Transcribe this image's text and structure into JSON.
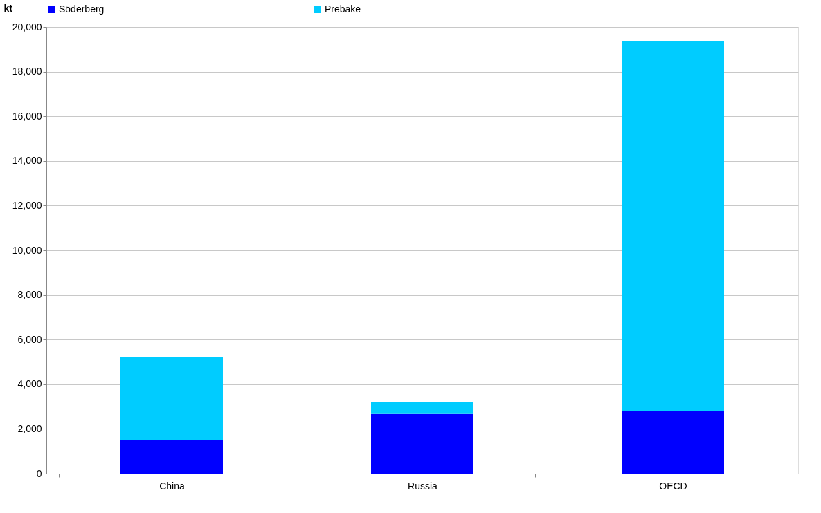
{
  "chart_data": {
    "type": "bar",
    "stacked": true,
    "ylabel": "kt",
    "categories": [
      "China",
      "Russia",
      "OECD"
    ],
    "series": [
      {
        "name": "Söderberg",
        "color": "#0000ff",
        "values": [
          1500,
          2670,
          2820
        ]
      },
      {
        "name": "Prebake",
        "color": "#00ccff",
        "values": [
          3700,
          530,
          16560
        ]
      }
    ],
    "ylim": [
      0,
      20000
    ],
    "yticks": [
      {
        "value": 0,
        "label": "0"
      },
      {
        "value": 2000,
        "label": "2,000"
      },
      {
        "value": 4000,
        "label": "4,000"
      },
      {
        "value": 6000,
        "label": "6,000"
      },
      {
        "value": 8000,
        "label": "8,000"
      },
      {
        "value": 10000,
        "label": "10,000"
      },
      {
        "value": 12000,
        "label": "12,000"
      },
      {
        "value": 14000,
        "label": "14,000"
      },
      {
        "value": 16000,
        "label": "16,000"
      },
      {
        "value": 18000,
        "label": "18,000"
      },
      {
        "value": 20000,
        "label": "20,000"
      }
    ],
    "grid": "y",
    "legend": "top"
  }
}
